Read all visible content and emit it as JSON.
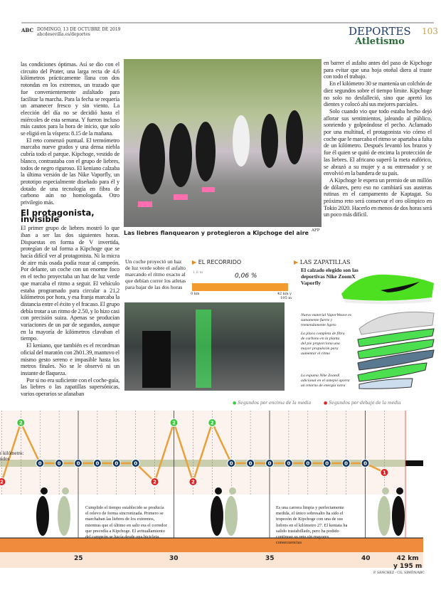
{
  "header": {
    "brand": "ABC",
    "date": "DOMINGO, 13 DE OCTUBRE DE 2019",
    "url": "abcdesevilla.es/deportes",
    "section": "DEPORTES",
    "page": "103",
    "subsection": "Atletismo"
  },
  "left_column": {
    "paragraphs": [
      "las condiciones óptimas. Así se dio con el circuito del Prater, una larga recta de 4,6 kilómetros prácticamente llana con dos rotondas en los extremos, un trazado que fue convenientemente asfaltado para facilitar la marcha. Para la fecha se requería un amanecer fresco y sin viento. La elección del día no se decidió hasta el miércoles de esta semana. Y fueron incluso más cautos para la hora de inicio, que solo se eligió en la víspera: 8.15 de la mañana.",
      "El reto comenzó puntual. El termómetro marcaba nueve grados y una densa niebla cubría todo el parque. Kipchoge, vestido de blanco, contrastaba con el grupo de liebres, todos de negro riguroso. El keniano calzaba la última versión de las Nike Vaporfly, un prototipo especialmente diseñado para él y dotado de una tecnología en fibra de carbono aún no homologada. Otro privilegio más."
    ],
    "subhead": "El protagonista, invisible",
    "paragraphs2": [
      "El primer grupo de liebres mostró lo que iban a ser las dos siguientes horas. Dispuestas en forma de V invertida, protegían de tal forma a Kipchoge que se hacía difícil ver al protagonista. Ni la micra de aire más osada podía rozar al campeón. Por delante, un coche con un enorme foco en el techo proyectaba un haz de luz verde que marcaba el ritmo a seguir. El vehículo estaba programado para circular a 21,2 kilómetros por hora, y esa franja marcaba la distancia entre el éxito y el fracaso. El grupo debía trotar a un ritmo de 2.50, y lo hizo casi con precisión suiza. Apenas se producían variaciones de un par de segundos, aunque en la mayoría de kilómetros clavaban el tiempo.",
      "El keniano, que también es el recordman oficial del maratón con 2h01.39, mantuvo el mismo gesto sereno e impasible hasta los metros finales. No se le observó ni un instante de flaqueza.",
      "Por si no era suficiente con el coche-guía, las liebres o las zapatillas supersónicas, varios operarios se afanaban"
    ]
  },
  "right_column": {
    "paragraphs": [
      "en barrer el asfalto antes del paso de Kipchoge para evitar que una hoja otoñal diera al traste con todo el trabajo.",
      "En el kilómetro 30 se mantenía un colchón de diez segundos sobre el tiempo límite. Kipchoge no solo no desfalleció, sino que apretó los dientes y colocó ahí sus mejores parciales.",
      "Solo cuando vio que todo estaba hecho dejó aflorar sus sentimientos, jaleando al público, sonriendo y golpeándose el pecho. Aclamado por una multitud, el protagonista vio cómo el coche que le marcaba el ritmo se apartaba a falta de un kilómetro. Después levantó los brazos y fue él quien se quitó de encima la protección de las liebres. El africano superó la meta eufórico, se abrazó a su mujer y a su entrenador y se envolvió en la bandera de su país.",
      "A Kipchoge le espera un premio de un millón de dólares, pero eso no cambiará sus austeras rutinas en el campamento de Kaptagat. Su próximo reto será conservar el oro olímpico en Tokio 2020. Hacerlo en menos de dos horas será un poco más difícil."
    ]
  },
  "photo": {
    "caption": "Las liebres flanquearon y protegieron a Kipchoge del aire",
    "credit": "AFP"
  },
  "graphic": {
    "car_text": "Un coche proyectó un haz de luz verde sobre el asfalto marcando el ritmo exacto al que debían correr los atletas para bajar de las dos horas",
    "route": {
      "title": "EL RECORRIDO",
      "elev": "1,6 m",
      "slope": "0,06 %",
      "start": "0 km",
      "end": "42 km y 195 m"
    },
    "shoes": {
      "title": "LAS ZAPATILLAS",
      "subtitle": "El calzado elegido son las deportivas Nike ZoomX Vaporfly",
      "notes": [
        "Nuevo material VaporWeave es sumamente fuerte y tremendamente ligero",
        "La placa completa de fibra de carbono en la planta del pie proporciona una mayor propulsión para aumentar el ritmo",
        "La espuma Nike ZoomX adicional en el antepié aporta un retorno de energía extra"
      ]
    },
    "accent": "#e88a1e"
  },
  "chart_data": {
    "type": "line",
    "legend": [
      "Segundos por encima de la media",
      "Segundos por debajo de la media"
    ],
    "left_label": [
      "r kilómetro:",
      "ndos"
    ],
    "km": [
      21,
      22,
      23,
      24,
      25,
      26,
      27,
      28,
      29,
      30,
      31,
      32,
      33,
      34,
      35,
      36,
      37,
      38,
      39,
      40,
      41
    ],
    "seconds": [
      -2,
      2,
      0,
      0,
      0,
      0,
      0,
      0,
      -2,
      2,
      -2,
      2,
      0,
      0,
      0,
      0,
      0,
      0,
      0,
      0,
      -1
    ],
    "display": [
      "2",
      "2",
      "0",
      "0",
      "0",
      "0",
      "0",
      "0",
      "2",
      "2",
      "2",
      "2",
      "0",
      "0",
      "0",
      "0",
      "0",
      "0",
      "0",
      "0",
      "1"
    ],
    "ticks": [
      "25",
      "30",
      "35",
      "40"
    ],
    "finish": [
      "42 km",
      "y 195 m"
    ],
    "colors": {
      "above": "#3ec83e",
      "below": "#e02020",
      "zero": "#0f3560",
      "line": "#e8a03a"
    },
    "notes": [
      "Cumplido el tiempo establecido se producía el relevo de forma sincronizada. Primero se marchaban las liebres de los extremos, mientras que el último en salir era el corredor que precedía a Kipchoge. El avituallamiento del campeón se hacía desde una bicicleta",
      "Es una carrera limpia y perfectamente medida, el único sobresalto ha sido el tropezón de Kipchoge con una de sus liebres en el kilómetro 27. El keniata ha salido trastabillado, pero ha podido continuar su reto sin mayores consecuencias"
    ],
    "credit": "P. SÁNCHEZ - CG. SIMÓN/ABC"
  }
}
